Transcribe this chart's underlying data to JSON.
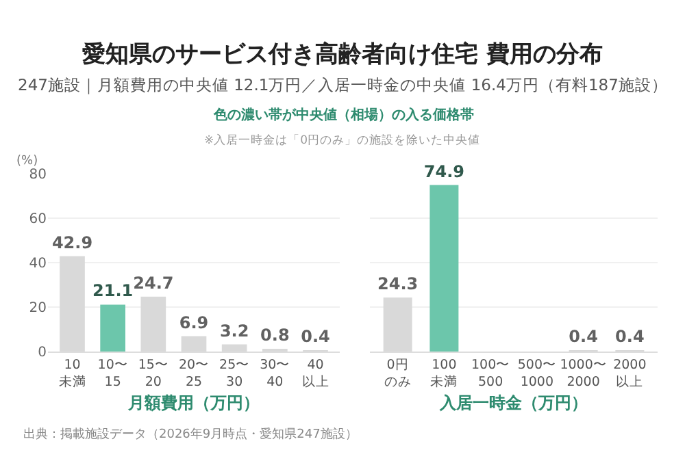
{
  "chart_data": [
    {
      "type": "bar",
      "title": "愛知県のサービス付き高齢者向け住宅 費用の分布",
      "subtitle": "247施設｜月額費用の中央値 12.1万円／入居一時金の中央値 16.4万円（有料187施設）",
      "annotations": [
        "色の濃い帯が中央値（相場）の入る価格帯",
        "※入居一時金は「0円のみ」の施設を除いた中央値",
        "出典：掲載施設データ（2026年9月時点・愛知県247施設）"
      ],
      "ylabel": "(%)",
      "xlabel": "月額費用（万円）",
      "categories": [
        "10\n未満",
        "10〜\n15",
        "15〜\n20",
        "20〜\n25",
        "25〜\n30",
        "30〜\n40",
        "40\n以上"
      ],
      "values": [
        42.9,
        21.1,
        24.7,
        6.9,
        3.2,
        0.8,
        0.4
      ],
      "colors": [
        "#d9d9d9",
        "#6cc6ab",
        "#d9d9d9",
        "#d9d9d9",
        "#d9d9d9",
        "#d9d9d9",
        "#d9d9d9"
      ],
      "ylim": [
        0,
        80
      ],
      "yticks": [
        0,
        20,
        40,
        60,
        80
      ],
      "grid": "y",
      "data_labels": true
    },
    {
      "type": "bar",
      "xlabel": "入居一時金（万円）",
      "categories": [
        "0円のみ",
        "100\n未満",
        "100〜\n500",
        "500〜\n1000",
        "1000〜\n2000",
        "2000\n以上"
      ],
      "values": [
        24.3,
        74.9,
        null,
        null,
        0.4,
        0.4
      ],
      "colors": [
        "#d9d9d9",
        "#6cc6ab",
        "#d9d9d9",
        "#d9d9d9",
        "#d9d9d9",
        "#d9d9d9"
      ],
      "ylim": [
        0,
        80
      ],
      "yticks": [
        0,
        20,
        40,
        60,
        80
      ],
      "grid": "y",
      "data_labels": true,
      "tick_labels": "x"
    }
  ]
}
